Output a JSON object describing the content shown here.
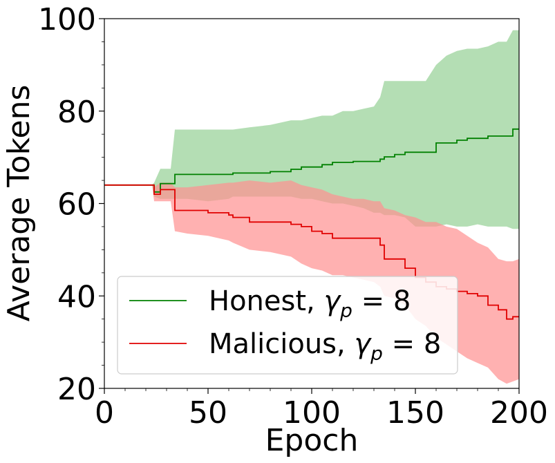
{
  "chart_data": {
    "type": "line",
    "xlabel": "Epoch",
    "ylabel": "Average Tokens",
    "xlim": [
      0,
      200
    ],
    "ylim": [
      20,
      100
    ],
    "xticks": [
      0,
      50,
      100,
      150,
      200
    ],
    "yticks": [
      20,
      40,
      60,
      80,
      100
    ],
    "grid": false,
    "legend_position": "lower-left",
    "series": [
      {
        "name_main": "Honest, ",
        "name_gamma": "γ",
        "name_sub": "p",
        "name_tail": " = 8",
        "color": "#008000",
        "band_color": "#82c882",
        "x": [
          0,
          23,
          24,
          27,
          30,
          32,
          34,
          40,
          50,
          60,
          62,
          70,
          80,
          90,
          95,
          100,
          105,
          110,
          115,
          120,
          125,
          130,
          133,
          135,
          140,
          145,
          150,
          155,
          160,
          165,
          170,
          175,
          180,
          185,
          190,
          194,
          197,
          200
        ],
        "y": [
          64,
          64,
          62.5,
          64.3,
          64.3,
          64.3,
          66.3,
          66.3,
          66.3,
          66.3,
          66.6,
          66.6,
          66.9,
          67.4,
          67.9,
          67.9,
          68.4,
          68.9,
          68.9,
          69.1,
          69.1,
          69.1,
          69.6,
          70.1,
          70.6,
          71.1,
          71.1,
          71.1,
          73.1,
          73.1,
          73.7,
          74.1,
          74.1,
          74.6,
          74.6,
          74.6,
          76.1,
          76.1
        ],
        "upper": [
          64,
          64,
          64.5,
          67.5,
          67.5,
          67.5,
          76.0,
          76.0,
          76.0,
          76.0,
          76.0,
          76.5,
          77.0,
          78.0,
          78.0,
          78.5,
          79.0,
          79.0,
          80.0,
          80.0,
          80.5,
          81.0,
          83.0,
          86.5,
          86.5,
          86.5,
          86.5,
          86.5,
          90.0,
          92.0,
          93.0,
          93.5,
          93.5,
          94.0,
          95.0,
          95.0,
          97.5,
          97.5
        ],
        "lower": [
          64,
          64,
          61.5,
          61.0,
          61.0,
          61.0,
          61.0,
          61.0,
          60.5,
          61.0,
          61.5,
          61.5,
          61.5,
          61.5,
          61.0,
          61.0,
          60.5,
          60.0,
          60.0,
          59.5,
          59.0,
          58.0,
          58.0,
          57.5,
          57.5,
          57.0,
          55.0,
          55.0,
          55.0,
          55.5,
          55.0,
          55.0,
          55.5,
          55.0,
          55.0,
          55.0,
          54.5,
          54.5
        ]
      },
      {
        "name_main": "Malicious, ",
        "name_gamma": "γ",
        "name_sub": "p",
        "name_tail": " = 8",
        "color": "#e00000",
        "band_color": "#ff9090",
        "x": [
          0,
          23,
          24,
          27,
          30,
          32,
          34,
          40,
          50,
          60,
          62,
          70,
          80,
          90,
          95,
          100,
          105,
          110,
          115,
          120,
          125,
          130,
          133,
          135,
          140,
          145,
          150,
          155,
          160,
          165,
          170,
          175,
          180,
          185,
          190,
          194,
          197,
          200
        ],
        "y": [
          64,
          64,
          62.0,
          63.0,
          63.0,
          63.0,
          58.5,
          58.5,
          58.0,
          57.5,
          57.0,
          56.0,
          56.0,
          55.5,
          55.0,
          54.0,
          53.5,
          52.5,
          52.5,
          52.5,
          52.5,
          52.5,
          51.0,
          48.0,
          48.0,
          46.0,
          44.0,
          43.0,
          42.0,
          41.5,
          41.0,
          40.5,
          40.0,
          38.0,
          37.0,
          35.0,
          35.5,
          35.5
        ],
        "upper": [
          64,
          64,
          63.5,
          64.5,
          64.5,
          64.5,
          63.5,
          63.5,
          64.0,
          64.5,
          64.5,
          65.0,
          64.5,
          65.0,
          64.0,
          63.5,
          63.0,
          62.0,
          61.5,
          61.0,
          61.0,
          60.5,
          60.5,
          59.0,
          58.5,
          57.5,
          57.0,
          56.0,
          56.0,
          55.0,
          54.5,
          53.0,
          51.5,
          50.5,
          48.0,
          47.5,
          47.5,
          48.0
        ],
        "lower": [
          64,
          64,
          60.5,
          60.5,
          60.5,
          60.5,
          54.0,
          53.5,
          53.0,
          52.0,
          51.5,
          50.0,
          49.5,
          48.5,
          47.0,
          46.0,
          45.5,
          44.5,
          44.5,
          44.0,
          43.5,
          43.0,
          42.0,
          40.0,
          39.5,
          38.0,
          35.0,
          33.5,
          31.0,
          29.5,
          28.0,
          26.5,
          25.5,
          24.5,
          22.0,
          21.0,
          21.5,
          22.0
        ]
      }
    ]
  }
}
